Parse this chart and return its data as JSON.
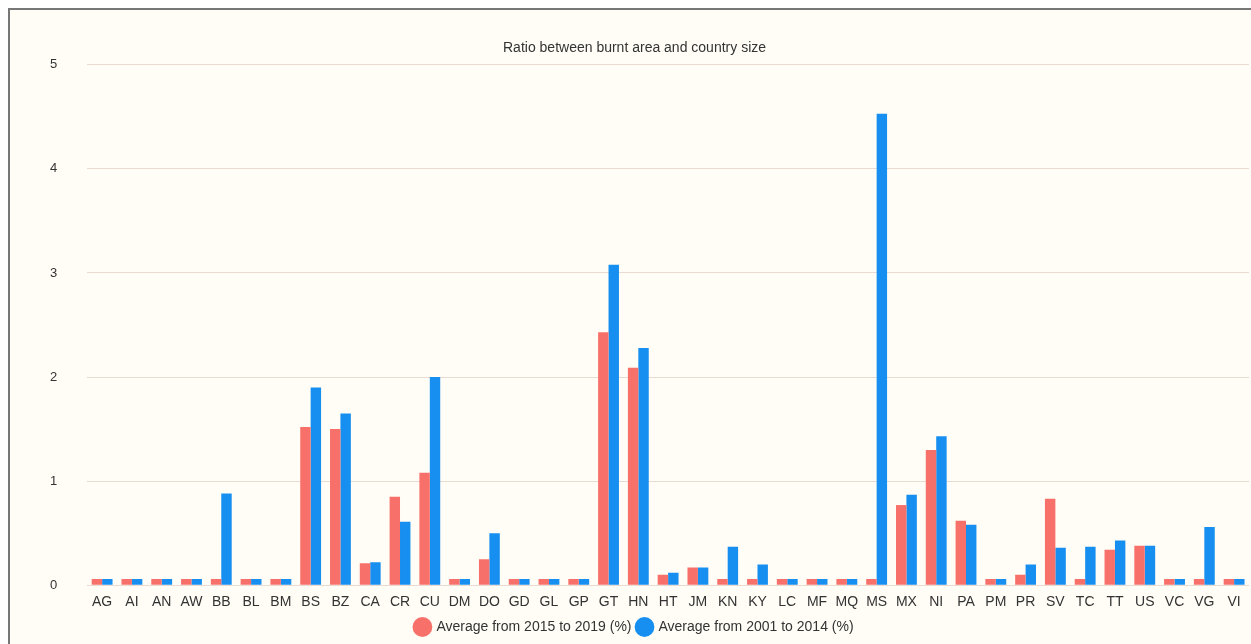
{
  "chart_data": {
    "type": "bar",
    "title": "Ratio between burnt area and country size",
    "categories": [
      "AG",
      "AI",
      "AN",
      "AW",
      "BB",
      "BL",
      "BM",
      "BS",
      "BZ",
      "CA",
      "CR",
      "CU",
      "DM",
      "DO",
      "GD",
      "GL",
      "GP",
      "GT",
      "HN",
      "HT",
      "JM",
      "KN",
      "KY",
      "LC",
      "MF",
      "MQ",
      "MS",
      "MX",
      "NI",
      "PA",
      "PM",
      "PR",
      "SV",
      "TC",
      "TT",
      "US",
      "VC",
      "VG",
      "VI"
    ],
    "series": [
      {
        "name": "Average from 2015 to 2019 (%)",
        "color": "#f8706a",
        "values": [
          0.06,
          0.06,
          0.06,
          0.06,
          0.06,
          0.06,
          0.06,
          1.52,
          1.5,
          0.21,
          0.85,
          1.08,
          0.06,
          0.25,
          0.06,
          0.06,
          0.06,
          2.43,
          2.09,
          0.1,
          0.17,
          0.06,
          0.06,
          0.06,
          0.06,
          0.06,
          0.06,
          0.77,
          1.3,
          0.62,
          0.06,
          0.1,
          0.83,
          0.06,
          0.34,
          0.38,
          0.06,
          0.06,
          0.06
        ]
      },
      {
        "name": "Average from 2001 to 2014 (%)",
        "color": "#168ff0",
        "values": [
          0.06,
          0.06,
          0.06,
          0.06,
          0.88,
          0.06,
          0.06,
          1.9,
          1.65,
          0.22,
          0.61,
          2.0,
          0.06,
          0.5,
          0.06,
          0.06,
          0.06,
          3.08,
          2.28,
          0.12,
          0.17,
          0.37,
          0.2,
          0.06,
          0.06,
          0.06,
          4.53,
          0.87,
          1.43,
          0.58,
          0.06,
          0.2,
          0.36,
          0.37,
          0.43,
          0.38,
          0.06,
          0.56,
          0.06
        ]
      }
    ],
    "ylim": [
      0,
      5
    ],
    "yticks": [
      0,
      1,
      2,
      3,
      4,
      5
    ],
    "grid": "y",
    "legend": "bottom",
    "marker": "circle"
  }
}
